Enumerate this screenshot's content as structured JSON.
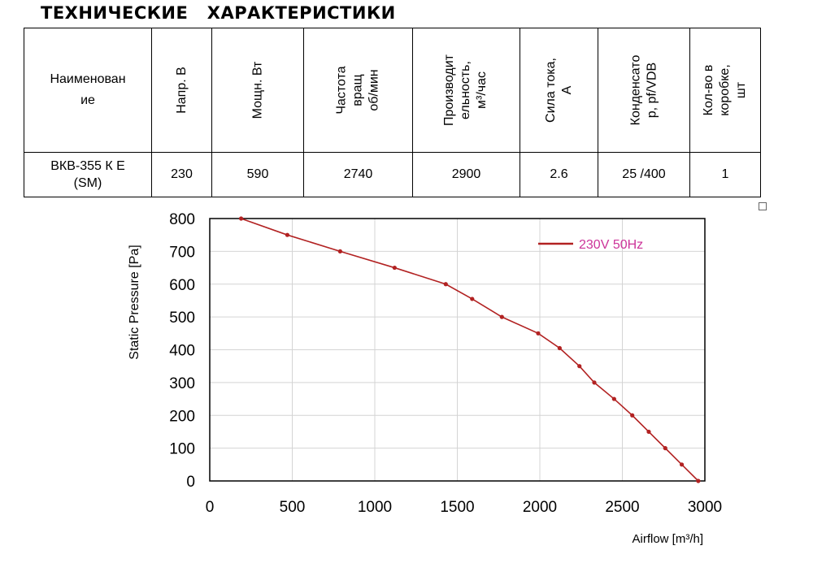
{
  "title": "ТЕХНИЧЕСКИЕ   ХАРАКТЕРИСТИКИ",
  "table": {
    "headers": [
      "Наименован\nие",
      "Напр. В",
      "Мощн. Вт",
      "Частота\nвращ\nоб/мин",
      "Производит\nельность,\nм³/час",
      "Сила тока,\nА",
      "Конденсато\nр, pf/VDB",
      "Кол-во в\nкоробке, шт"
    ],
    "row": [
      "ВКВ-355 К Е\n(SM)",
      "230",
      "590",
      "2740",
      "2900",
      "2.6",
      "25 /400",
      "1"
    ]
  },
  "chart_data": {
    "type": "line",
    "xlabel": "Airflow [m³/h]",
    "ylabel": "Static Pressure [Pa]",
    "xlim": [
      0,
      3000
    ],
    "ylim": [
      0,
      800
    ],
    "x_ticks": [
      "0",
      "500",
      "1000",
      "1500",
      "2000",
      "2500",
      "3000"
    ],
    "y_ticks": [
      "0",
      "100",
      "200",
      "300",
      "400",
      "500",
      "600",
      "700",
      "800"
    ],
    "grid": true,
    "legend_position": "top-right",
    "series": [
      {
        "name": "230V 50Hz",
        "color": "#b22222",
        "x": [
          190,
          470,
          790,
          1120,
          1430,
          1590,
          1770,
          1990,
          2120,
          2240,
          2330,
          2450,
          2560,
          2660,
          2760,
          2860,
          2960
        ],
        "y": [
          800,
          750,
          700,
          650,
          600,
          555,
          500,
          450,
          405,
          350,
          300,
          250,
          200,
          150,
          100,
          50,
          0
        ]
      }
    ],
    "legend_text_color": "#cc3399"
  }
}
